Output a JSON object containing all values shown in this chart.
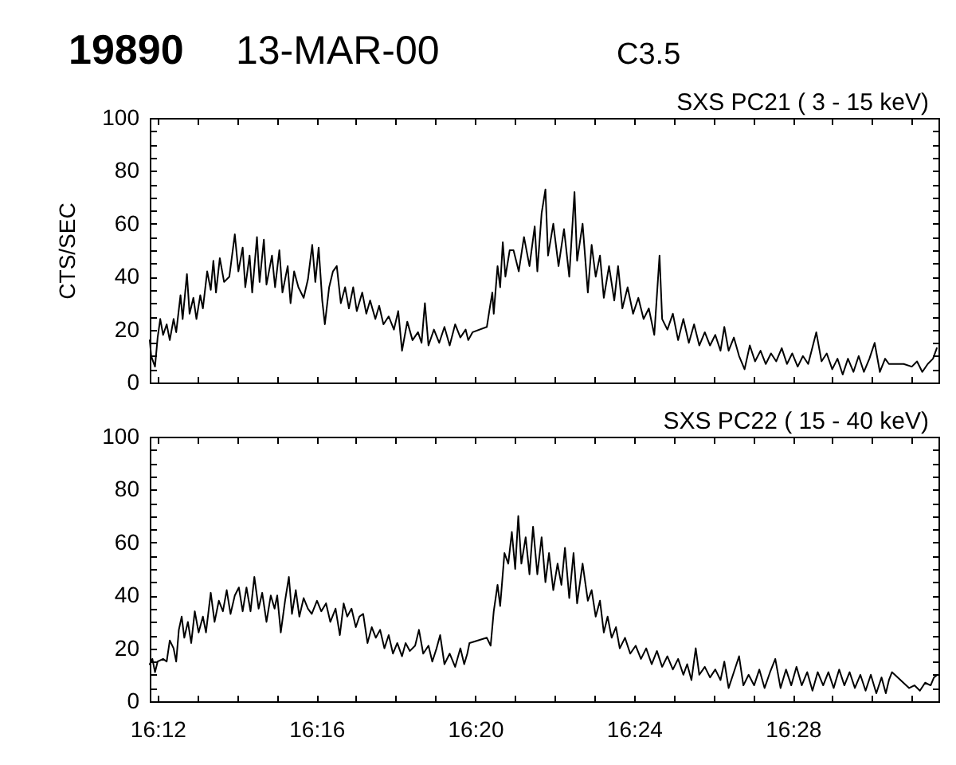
{
  "chart_data": [
    {
      "type": "line",
      "title": "SXS PC21 ( 3 - 15 keV)",
      "ylabel": "CTS/SEC",
      "annotations": [
        "19890",
        "13-MAR-00",
        "C3.5"
      ],
      "color": "#000000",
      "tick_labels": "y",
      "xlim": [
        16.1967,
        16.5278
      ],
      "ylim": [
        0,
        100
      ],
      "xticks": [
        {
          "value": 16.2,
          "label": null
        },
        {
          "value": 16.2167,
          "label": null
        },
        {
          "value": 16.2333,
          "label": null
        },
        {
          "value": 16.25,
          "label": null
        },
        {
          "value": 16.2667,
          "label": null
        },
        {
          "value": 16.2833,
          "label": null
        },
        {
          "value": 16.3,
          "label": null
        },
        {
          "value": 16.3167,
          "label": null
        },
        {
          "value": 16.3333,
          "label": null
        },
        {
          "value": 16.35,
          "label": null
        },
        {
          "value": 16.3667,
          "label": null
        },
        {
          "value": 16.3833,
          "label": null
        },
        {
          "value": 16.4,
          "label": null
        },
        {
          "value": 16.4167,
          "label": null
        },
        {
          "value": 16.4333,
          "label": null
        },
        {
          "value": 16.45,
          "label": null
        },
        {
          "value": 16.4667,
          "label": null
        },
        {
          "value": 16.4833,
          "label": null
        },
        {
          "value": 16.5,
          "label": null
        },
        {
          "value": 16.5167,
          "label": null
        }
      ],
      "yticks": [
        0,
        {
          "value": 5,
          "label": null
        },
        {
          "value": 10,
          "label": null
        },
        {
          "value": 15,
          "label": null
        },
        20,
        {
          "value": 25,
          "label": null
        },
        {
          "value": 30,
          "label": null
        },
        {
          "value": 35,
          "label": null
        },
        40,
        {
          "value": 45,
          "label": null
        },
        {
          "value": 50,
          "label": null
        },
        {
          "value": 55,
          "label": null
        },
        60,
        {
          "value": 65,
          "label": null
        },
        {
          "value": 70,
          "label": null
        },
        {
          "value": 75,
          "label": null
        },
        80,
        {
          "value": 85,
          "label": null
        },
        {
          "value": 90,
          "label": null
        },
        {
          "value": 95,
          "label": null
        },
        100
      ],
      "x": [
        16.1967,
        16.1973,
        16.1989,
        16.2,
        16.2011,
        16.2023,
        16.2038,
        16.2051,
        16.2067,
        16.2078,
        16.2096,
        16.2105,
        16.2123,
        16.2134,
        16.215,
        16.2163,
        16.2179,
        16.219,
        16.2208,
        16.2223,
        16.2234,
        16.2245,
        16.2261,
        16.2279,
        16.2301,
        16.2324,
        16.2339,
        16.2357,
        16.2368,
        16.2386,
        16.2397,
        16.2417,
        16.2428,
        16.2446,
        16.2457,
        16.248,
        16.2493,
        16.2511,
        16.2524,
        16.2546,
        16.2558,
        16.2573,
        16.2591,
        16.2613,
        16.2631,
        16.2649,
        16.2662,
        16.2676,
        16.2691,
        16.2702,
        16.272,
        16.2736,
        16.2752,
        16.2769,
        16.2787,
        16.2803,
        16.2821,
        16.2836,
        16.2859,
        16.2876,
        16.2892,
        16.2914,
        16.293,
        16.2948,
        16.297,
        16.2992,
        16.301,
        16.3026,
        16.3048,
        16.307,
        16.3093,
        16.3108,
        16.3122,
        16.3137,
        16.316,
        16.3182,
        16.3204,
        16.3226,
        16.3249,
        16.3271,
        16.3293,
        16.3304,
        16.3322,
        16.3382,
        16.3394,
        16.3405,
        16.3411,
        16.3427,
        16.3438,
        16.3449,
        16.346,
        16.3478,
        16.3494,
        16.3516,
        16.3538,
        16.3561,
        16.3583,
        16.3594,
        16.3612,
        16.3628,
        16.3639,
        16.3661,
        16.3683,
        16.3706,
        16.3728,
        16.375,
        16.3761,
        16.3784,
        16.3806,
        16.3822,
        16.3839,
        16.3857,
        16.3873,
        16.3895,
        16.3917,
        16.3933,
        16.3951,
        16.3973,
        16.3996,
        16.4018,
        16.404,
        16.4062,
        16.4085,
        16.4107,
        16.4118,
        16.414,
        16.4163,
        16.4185,
        16.4207,
        16.423,
        16.4252,
        16.4274,
        16.4297,
        16.4319,
        16.4341,
        16.4363,
        16.4379,
        16.4397,
        16.4419,
        16.4441,
        16.4464,
        16.4486,
        16.4508,
        16.4531,
        16.4553,
        16.4575,
        16.4597,
        16.462,
        16.4642,
        16.4664,
        16.4687,
        16.4709,
        16.4731,
        16.4765,
        16.4787,
        16.4809,
        16.4832,
        16.4854,
        16.4876,
        16.4898,
        16.4921,
        16.4943,
        16.4965,
        16.4988,
        16.501,
        16.5032,
        16.5054,
        16.507,
        16.5132,
        16.5166,
        16.5188,
        16.521,
        16.5233,
        16.5255,
        16.5271
      ],
      "values": [
        16,
        10,
        6,
        17,
        24,
        18,
        22,
        16,
        24,
        19,
        33,
        24,
        41,
        26,
        32,
        24,
        33,
        28,
        42,
        35,
        46,
        34,
        47,
        38,
        40,
        56,
        42,
        51,
        36,
        48,
        34,
        55,
        38,
        54,
        37,
        48,
        36,
        50,
        34,
        44,
        30,
        42,
        36,
        32,
        39,
        52,
        38,
        51,
        31,
        22,
        36,
        42,
        44,
        30,
        36,
        28,
        36,
        27,
        34,
        26,
        31,
        24,
        29,
        22,
        25,
        20,
        27,
        12,
        23,
        16,
        19,
        15,
        30,
        14,
        20,
        15,
        21,
        14,
        22,
        17,
        20,
        16,
        19,
        21,
        28,
        34,
        26,
        44,
        36,
        53,
        40,
        50,
        50,
        42,
        55,
        44,
        59,
        42,
        64,
        73,
        48,
        60,
        44,
        58,
        40,
        72,
        46,
        60,
        34,
        52,
        40,
        48,
        32,
        44,
        31,
        44,
        28,
        36,
        26,
        32,
        24,
        28,
        18,
        48,
        24,
        20,
        26,
        16,
        24,
        15,
        22,
        14,
        19,
        14,
        18,
        12,
        21,
        12,
        17,
        10,
        5,
        14,
        8,
        12,
        7,
        11,
        8,
        13,
        7,
        11,
        6,
        10,
        7,
        19,
        8,
        11,
        5,
        9,
        3,
        9,
        4,
        10,
        4,
        9,
        15,
        4,
        9,
        7,
        7,
        6,
        8,
        4,
        7,
        9,
        13
      ]
    },
    {
      "type": "line",
      "title": "SXS PC22 ( 15 - 40 keV)",
      "color": "#000000",
      "xlim": [
        16.1967,
        16.5278
      ],
      "ylim": [
        0,
        100
      ],
      "xticks": [
        {
          "value": 16.2,
          "label": "16:12"
        },
        {
          "value": 16.2167,
          "label": null
        },
        {
          "value": 16.2333,
          "label": null
        },
        {
          "value": 16.25,
          "label": null
        },
        {
          "value": 16.2667,
          "label": "16:16"
        },
        {
          "value": 16.2833,
          "label": null
        },
        {
          "value": 16.3,
          "label": null
        },
        {
          "value": 16.3167,
          "label": null
        },
        {
          "value": 16.3333,
          "label": "16:20"
        },
        {
          "value": 16.35,
          "label": null
        },
        {
          "value": 16.3667,
          "label": null
        },
        {
          "value": 16.3833,
          "label": null
        },
        {
          "value": 16.4,
          "label": "16:24"
        },
        {
          "value": 16.4167,
          "label": null
        },
        {
          "value": 16.4333,
          "label": null
        },
        {
          "value": 16.45,
          "label": null
        },
        {
          "value": 16.4667,
          "label": "16:28"
        },
        {
          "value": 16.4833,
          "label": null
        },
        {
          "value": 16.5,
          "label": null
        },
        {
          "value": 16.5167,
          "label": null
        }
      ],
      "yticks": [
        0,
        {
          "value": 5,
          "label": null
        },
        {
          "value": 10,
          "label": null
        },
        {
          "value": 15,
          "label": null
        },
        20,
        {
          "value": 25,
          "label": null
        },
        {
          "value": 30,
          "label": null
        },
        {
          "value": 35,
          "label": null
        },
        40,
        {
          "value": 45,
          "label": null
        },
        {
          "value": 50,
          "label": null
        },
        {
          "value": 55,
          "label": null
        },
        60,
        {
          "value": 65,
          "label": null
        },
        {
          "value": 70,
          "label": null
        },
        {
          "value": 75,
          "label": null
        },
        80,
        {
          "value": 85,
          "label": null
        },
        {
          "value": 90,
          "label": null
        },
        {
          "value": 95,
          "label": null
        },
        100
      ],
      "x": [
        16.1967,
        16.1978,
        16.1989,
        16.2,
        16.2023,
        16.2038,
        16.2051,
        16.2067,
        16.2078,
        16.2089,
        16.2101,
        16.2112,
        16.2127,
        16.2141,
        16.2156,
        16.2172,
        16.219,
        16.2203,
        16.2223,
        16.2239,
        16.2257,
        16.2274,
        16.229,
        16.2306,
        16.2324,
        16.2341,
        16.2357,
        16.2373,
        16.239,
        16.2406,
        16.2424,
        16.2439,
        16.2457,
        16.2475,
        16.2491,
        16.2502,
        16.2517,
        16.2535,
        16.2551,
        16.2564,
        16.258,
        16.2595,
        16.2613,
        16.2631,
        16.2647,
        16.2669,
        16.2687,
        16.2707,
        16.2725,
        16.2747,
        16.2765,
        16.2781,
        16.2796,
        16.2814,
        16.2832,
        16.2847,
        16.2863,
        16.2881,
        16.2899,
        16.2916,
        16.2934,
        16.2952,
        16.297,
        16.2988,
        16.3006,
        16.3026,
        16.3041,
        16.3059,
        16.3081,
        16.3097,
        16.3115,
        16.3137,
        16.3153,
        16.3171,
        16.3186,
        16.3204,
        16.3226,
        16.3249,
        16.3271,
        16.3287,
        16.33,
        16.3309,
        16.3382,
        16.3398,
        16.3411,
        16.3427,
        16.3438,
        16.3456,
        16.3472,
        16.3487,
        16.3501,
        16.3514,
        16.3527,
        16.3545,
        16.3561,
        16.3576,
        16.3594,
        16.3612,
        16.3628,
        16.3643,
        16.3661,
        16.3679,
        16.3695,
        16.371,
        16.3728,
        16.3746,
        16.3761,
        16.3784,
        16.3806,
        16.3822,
        16.3839,
        16.3857,
        16.3873,
        16.3889,
        16.3906,
        16.3924,
        16.394,
        16.3962,
        16.3984,
        16.4007,
        16.4029,
        16.4051,
        16.4074,
        16.4096,
        16.4118,
        16.414,
        16.4163,
        16.4185,
        16.4207,
        16.4223,
        16.4241,
        16.4259,
        16.4274,
        16.4297,
        16.4319,
        16.4341,
        16.4363,
        16.4379,
        16.4397,
        16.4419,
        16.4441,
        16.4459,
        16.4481,
        16.4504,
        16.4526,
        16.4548,
        16.4571,
        16.4593,
        16.4615,
        16.4638,
        16.466,
        16.4682,
        16.4704,
        16.4727,
        16.4749,
        16.4771,
        16.4794,
        16.4816,
        16.4838,
        16.4861,
        16.4883,
        16.4905,
        16.4927,
        16.495,
        16.4972,
        16.4994,
        16.5017,
        16.5039,
        16.5057,
        16.507,
        16.5083,
        16.5155,
        16.5177,
        16.52,
        16.5222,
        16.5245,
        16.5259,
        16.5273
      ],
      "values": [
        14,
        16,
        11,
        15,
        16,
        15,
        23,
        20,
        15,
        27,
        32,
        24,
        30,
        22,
        34,
        26,
        32,
        26,
        41,
        30,
        38,
        34,
        42,
        33,
        40,
        43,
        34,
        43,
        34,
        47,
        35,
        41,
        30,
        40,
        35,
        40,
        26,
        38,
        47,
        33,
        42,
        32,
        39,
        35,
        33,
        38,
        34,
        37,
        30,
        35,
        25,
        37,
        32,
        35,
        28,
        32,
        33,
        22,
        28,
        24,
        27,
        20,
        25,
        18,
        22,
        17,
        22,
        19,
        21,
        27,
        18,
        21,
        15,
        20,
        25,
        14,
        18,
        13,
        20,
        14,
        18,
        22,
        24,
        21,
        34,
        44,
        36,
        56,
        52,
        64,
        50,
        70,
        52,
        62,
        48,
        66,
        48,
        62,
        45,
        56,
        42,
        52,
        44,
        58,
        39,
        56,
        37,
        52,
        38,
        42,
        32,
        38,
        26,
        32,
        24,
        28,
        20,
        24,
        18,
        21,
        16,
        20,
        14,
        19,
        13,
        17,
        12,
        16,
        10,
        14,
        8,
        20,
        10,
        13,
        9,
        12,
        8,
        15,
        5,
        11,
        17,
        6,
        10,
        6,
        12,
        5,
        11,
        16,
        5,
        12,
        6,
        13,
        6,
        11,
        4,
        11,
        6,
        11,
        5,
        12,
        6,
        11,
        5,
        10,
        4,
        10,
        3,
        9,
        3,
        8,
        11,
        5,
        6,
        4,
        7,
        6,
        9,
        10
      ]
    }
  ]
}
